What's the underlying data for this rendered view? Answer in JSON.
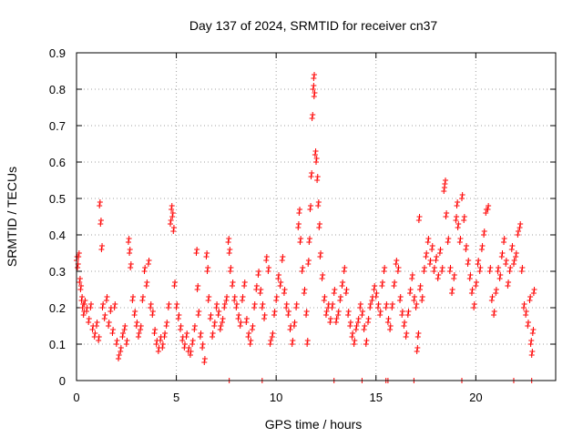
{
  "chart_data": {
    "type": "scatter",
    "title": "Day 137 of 2024, SRMTID for receiver cn37",
    "xlabel": "GPS time / hours",
    "ylabel": "SRMTID / TECUs",
    "xlim": [
      0,
      24
    ],
    "ylim": [
      0,
      0.9
    ],
    "xticks": [
      0,
      5,
      10,
      15,
      20
    ],
    "yticks": [
      0,
      0.1,
      0.2,
      0.3,
      0.4,
      0.5,
      0.6,
      0.7,
      0.8,
      0.9
    ],
    "grid": true,
    "marker": "+",
    "series": [
      {
        "name": "SRMTID",
        "color": "#ff0000",
        "points": [
          [
            0.0,
            0.33
          ],
          [
            0.05,
            0.31
          ],
          [
            0.1,
            0.34
          ],
          [
            0.15,
            0.27
          ],
          [
            0.2,
            0.25
          ],
          [
            0.25,
            0.22
          ],
          [
            0.3,
            0.2
          ],
          [
            0.35,
            0.18
          ],
          [
            0.4,
            0.21
          ],
          [
            0.5,
            0.19
          ],
          [
            0.6,
            0.16
          ],
          [
            0.7,
            0.2
          ],
          [
            0.8,
            0.14
          ],
          [
            0.9,
            0.12
          ],
          [
            1.0,
            0.15
          ],
          [
            1.1,
            0.11
          ],
          [
            1.15,
            0.48
          ],
          [
            1.2,
            0.43
          ],
          [
            1.25,
            0.36
          ],
          [
            1.3,
            0.2
          ],
          [
            1.4,
            0.17
          ],
          [
            1.5,
            0.22
          ],
          [
            1.6,
            0.15
          ],
          [
            1.7,
            0.19
          ],
          [
            1.8,
            0.13
          ],
          [
            1.9,
            0.2
          ],
          [
            2.0,
            0.1
          ],
          [
            2.1,
            0.06
          ],
          [
            2.2,
            0.08
          ],
          [
            2.3,
            0.12
          ],
          [
            2.4,
            0.14
          ],
          [
            2.5,
            0.1
          ],
          [
            2.6,
            0.38
          ],
          [
            2.65,
            0.35
          ],
          [
            2.7,
            0.31
          ],
          [
            2.8,
            0.22
          ],
          [
            2.9,
            0.18
          ],
          [
            3.0,
            0.15
          ],
          [
            3.1,
            0.12
          ],
          [
            3.2,
            0.14
          ],
          [
            3.3,
            0.22
          ],
          [
            3.4,
            0.3
          ],
          [
            3.5,
            0.26
          ],
          [
            3.6,
            0.32
          ],
          [
            3.7,
            0.2
          ],
          [
            3.8,
            0.18
          ],
          [
            3.9,
            0.13
          ],
          [
            4.0,
            0.1
          ],
          [
            4.1,
            0.08
          ],
          [
            4.2,
            0.11
          ],
          [
            4.3,
            0.09
          ],
          [
            4.4,
            0.12
          ],
          [
            4.5,
            0.15
          ],
          [
            4.6,
            0.2
          ],
          [
            4.7,
            0.43
          ],
          [
            4.75,
            0.47
          ],
          [
            4.8,
            0.45
          ],
          [
            4.85,
            0.41
          ],
          [
            4.9,
            0.26
          ],
          [
            5.0,
            0.2
          ],
          [
            5.1,
            0.17
          ],
          [
            5.2,
            0.14
          ],
          [
            5.3,
            0.11
          ],
          [
            5.4,
            0.09
          ],
          [
            5.5,
            0.12
          ],
          [
            5.6,
            0.08
          ],
          [
            5.7,
            0.07
          ],
          [
            5.8,
            0.1
          ],
          [
            5.9,
            0.14
          ],
          [
            6.0,
            0.35
          ],
          [
            6.05,
            0.25
          ],
          [
            6.1,
            0.18
          ],
          [
            6.2,
            0.12
          ],
          [
            6.3,
            0.09
          ],
          [
            6.4,
            0.05
          ],
          [
            6.5,
            0.34
          ],
          [
            6.55,
            0.3
          ],
          [
            6.6,
            0.22
          ],
          [
            6.7,
            0.17
          ],
          [
            6.8,
            0.12
          ],
          [
            6.9,
            0.15
          ],
          [
            7.0,
            0.2
          ],
          [
            7.1,
            0.18
          ],
          [
            7.2,
            0.14
          ],
          [
            7.3,
            0.16
          ],
          [
            7.4,
            0.2
          ],
          [
            7.5,
            0.22
          ],
          [
            7.6,
            0.38
          ],
          [
            7.65,
            0.35
          ],
          [
            7.7,
            0.3
          ],
          [
            7.8,
            0.26
          ],
          [
            7.9,
            0.22
          ],
          [
            8.0,
            0.2
          ],
          [
            8.1,
            0.17
          ],
          [
            8.2,
            0.15
          ],
          [
            8.3,
            0.22
          ],
          [
            8.4,
            0.26
          ],
          [
            8.5,
            0.16
          ],
          [
            8.6,
            0.12
          ],
          [
            8.7,
            0.1
          ],
          [
            8.8,
            0.14
          ],
          [
            8.9,
            0.2
          ],
          [
            9.0,
            0.25
          ],
          [
            9.1,
            0.29
          ],
          [
            9.2,
            0.24
          ],
          [
            9.3,
            0.2
          ],
          [
            9.4,
            0.17
          ],
          [
            9.5,
            0.33
          ],
          [
            9.6,
            0.3
          ],
          [
            9.7,
            0.1
          ],
          [
            9.8,
            0.12
          ],
          [
            9.9,
            0.18
          ],
          [
            10.0,
            0.22
          ],
          [
            10.1,
            0.28
          ],
          [
            10.2,
            0.26
          ],
          [
            10.3,
            0.33
          ],
          [
            10.4,
            0.24
          ],
          [
            10.5,
            0.2
          ],
          [
            10.6,
            0.18
          ],
          [
            10.7,
            0.14
          ],
          [
            10.8,
            0.1
          ],
          [
            10.9,
            0.15
          ],
          [
            11.0,
            0.2
          ],
          [
            11.1,
            0.42
          ],
          [
            11.15,
            0.46
          ],
          [
            11.2,
            0.38
          ],
          [
            11.3,
            0.3
          ],
          [
            11.4,
            0.24
          ],
          [
            11.5,
            0.18
          ],
          [
            11.55,
            0.1
          ],
          [
            11.6,
            0.32
          ],
          [
            11.65,
            0.38
          ],
          [
            11.7,
            0.47
          ],
          [
            11.75,
            0.56
          ],
          [
            11.8,
            0.72
          ],
          [
            11.85,
            0.8
          ],
          [
            11.88,
            0.83
          ],
          [
            11.9,
            0.78
          ],
          [
            11.95,
            0.62
          ],
          [
            12.0,
            0.6
          ],
          [
            12.05,
            0.55
          ],
          [
            12.1,
            0.48
          ],
          [
            12.15,
            0.42
          ],
          [
            12.2,
            0.34
          ],
          [
            12.3,
            0.28
          ],
          [
            12.4,
            0.22
          ],
          [
            12.5,
            0.18
          ],
          [
            12.6,
            0.2
          ],
          [
            12.7,
            0.16
          ],
          [
            12.8,
            0.2
          ],
          [
            12.9,
            0.24
          ],
          [
            13.0,
            0.16
          ],
          [
            13.1,
            0.18
          ],
          [
            13.2,
            0.22
          ],
          [
            13.3,
            0.26
          ],
          [
            13.4,
            0.3
          ],
          [
            13.5,
            0.24
          ],
          [
            13.6,
            0.18
          ],
          [
            13.7,
            0.15
          ],
          [
            13.8,
            0.12
          ],
          [
            13.9,
            0.1
          ],
          [
            14.0,
            0.14
          ],
          [
            14.1,
            0.16
          ],
          [
            14.2,
            0.2
          ],
          [
            14.3,
            0.18
          ],
          [
            14.4,
            0.14
          ],
          [
            14.5,
            0.1
          ],
          [
            14.6,
            0.16
          ],
          [
            14.7,
            0.2
          ],
          [
            14.8,
            0.22
          ],
          [
            14.9,
            0.25
          ],
          [
            15.0,
            0.23
          ],
          [
            15.1,
            0.2
          ],
          [
            15.2,
            0.18
          ],
          [
            15.3,
            0.26
          ],
          [
            15.4,
            0.3
          ],
          [
            15.5,
            0.2
          ],
          [
            15.6,
            0.16
          ],
          [
            15.7,
            0.14
          ],
          [
            15.8,
            0.2
          ],
          [
            15.9,
            0.26
          ],
          [
            16.0,
            0.32
          ],
          [
            16.1,
            0.3
          ],
          [
            16.2,
            0.22
          ],
          [
            16.3,
            0.18
          ],
          [
            16.4,
            0.15
          ],
          [
            16.5,
            0.12
          ],
          [
            16.6,
            0.18
          ],
          [
            16.7,
            0.24
          ],
          [
            16.8,
            0.28
          ],
          [
            16.9,
            0.22
          ],
          [
            17.0,
            0.2
          ],
          [
            17.05,
            0.08
          ],
          [
            17.1,
            0.12
          ],
          [
            17.15,
            0.44
          ],
          [
            17.2,
            0.25
          ],
          [
            17.3,
            0.22
          ],
          [
            17.4,
            0.3
          ],
          [
            17.5,
            0.34
          ],
          [
            17.6,
            0.38
          ],
          [
            17.7,
            0.32
          ],
          [
            17.8,
            0.36
          ],
          [
            17.9,
            0.3
          ],
          [
            18.0,
            0.33
          ],
          [
            18.1,
            0.28
          ],
          [
            18.2,
            0.35
          ],
          [
            18.3,
            0.3
          ],
          [
            18.4,
            0.52
          ],
          [
            18.45,
            0.54
          ],
          [
            18.5,
            0.45
          ],
          [
            18.6,
            0.38
          ],
          [
            18.7,
            0.3
          ],
          [
            18.8,
            0.24
          ],
          [
            18.9,
            0.28
          ],
          [
            19.0,
            0.44
          ],
          [
            19.05,
            0.48
          ],
          [
            19.1,
            0.42
          ],
          [
            19.2,
            0.38
          ],
          [
            19.3,
            0.5
          ],
          [
            19.4,
            0.44
          ],
          [
            19.5,
            0.36
          ],
          [
            19.6,
            0.32
          ],
          [
            19.7,
            0.28
          ],
          [
            19.8,
            0.24
          ],
          [
            19.9,
            0.2
          ],
          [
            20.0,
            0.26
          ],
          [
            20.1,
            0.32
          ],
          [
            20.2,
            0.3
          ],
          [
            20.3,
            0.36
          ],
          [
            20.4,
            0.4
          ],
          [
            20.5,
            0.46
          ],
          [
            20.6,
            0.47
          ],
          [
            20.7,
            0.3
          ],
          [
            20.8,
            0.22
          ],
          [
            20.9,
            0.18
          ],
          [
            21.0,
            0.24
          ],
          [
            21.1,
            0.3
          ],
          [
            21.2,
            0.28
          ],
          [
            21.3,
            0.34
          ],
          [
            21.4,
            0.38
          ],
          [
            21.5,
            0.32
          ],
          [
            21.6,
            0.26
          ],
          [
            21.7,
            0.3
          ],
          [
            21.8,
            0.36
          ],
          [
            21.9,
            0.32
          ],
          [
            22.0,
            0.34
          ],
          [
            22.1,
            0.4
          ],
          [
            22.2,
            0.42
          ],
          [
            22.3,
            0.3
          ],
          [
            22.4,
            0.2
          ],
          [
            22.5,
            0.18
          ],
          [
            22.6,
            0.15
          ],
          [
            22.7,
            0.22
          ],
          [
            22.75,
            0.1
          ],
          [
            22.8,
            0.07
          ],
          [
            22.85,
            0.13
          ],
          [
            22.9,
            0.24
          ]
        ],
        "zero_points": [
          7.65,
          9.3,
          12.9,
          14.3,
          15.5,
          15.6,
          16.9,
          19.3,
          21.9,
          22.8
        ]
      }
    ]
  }
}
